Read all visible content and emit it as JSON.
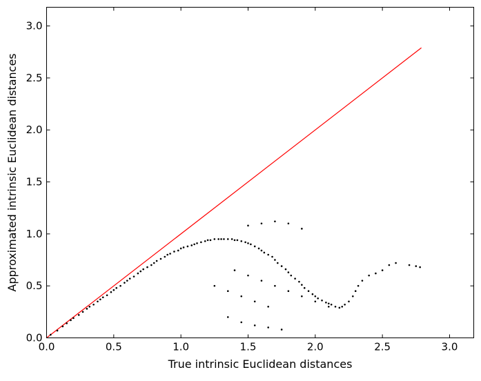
{
  "chart_data": {
    "type": "scatter",
    "title": "",
    "xlabel": "True intrinsic Euclidean distances",
    "ylabel": "Approximated intrinsic Euclidean distances",
    "xlim": [
      0.0,
      3.18
    ],
    "ylim": [
      0.0,
      3.18
    ],
    "xticks": [
      "0.0",
      "0.5",
      "1.0",
      "1.5",
      "2.0",
      "2.5",
      "3.0"
    ],
    "yticks": [
      "0.0",
      "0.5",
      "1.0",
      "1.5",
      "2.0",
      "2.5",
      "3.0"
    ],
    "grid": false,
    "legend": "none",
    "marker_color": "#000000",
    "line_color": "#ff0000",
    "series": [
      {
        "kind": "line",
        "x": [
          0.0,
          2.79
        ],
        "y": [
          0.0,
          2.79
        ]
      },
      {
        "kind": "scatter",
        "x": [
          0.03,
          0.08,
          0.12,
          0.15,
          0.18,
          0.2,
          0.24,
          0.27,
          0.3,
          0.32,
          0.35,
          0.38,
          0.4,
          0.42,
          0.45,
          0.48,
          0.5,
          0.52,
          0.55,
          0.58,
          0.6,
          0.62,
          0.65,
          0.68,
          0.7,
          0.72,
          0.75,
          0.78,
          0.8,
          0.82,
          0.85,
          0.88,
          0.9,
          0.92,
          0.95,
          0.98,
          1.0,
          1.02,
          1.05,
          1.08,
          1.1,
          1.12,
          1.15,
          1.18,
          1.2,
          1.22,
          1.25,
          1.28,
          1.3,
          1.32,
          1.35,
          1.38,
          1.4,
          1.42,
          1.45,
          1.48,
          1.5,
          1.52,
          1.55,
          1.58,
          1.6,
          1.62,
          1.65,
          1.68,
          1.7,
          1.72,
          1.75,
          1.78,
          1.8,
          1.82,
          1.85,
          1.88,
          1.9,
          1.92,
          1.95,
          1.98,
          2.0,
          2.02,
          2.05,
          2.08,
          2.1,
          2.12,
          2.15,
          2.18,
          2.2,
          2.22,
          2.25,
          2.28,
          2.3,
          2.32,
          2.35,
          2.4,
          2.45,
          2.5,
          2.55,
          2.6,
          2.7,
          2.75,
          2.78,
          1.25,
          1.35,
          1.45,
          1.55,
          1.65,
          1.35,
          1.45,
          1.55,
          1.65,
          1.75,
          1.4,
          1.5,
          1.6,
          1.7,
          1.8,
          1.9,
          2.0,
          2.1,
          1.5,
          1.6,
          1.7,
          1.8,
          1.9
        ],
        "y": [
          0.03,
          0.07,
          0.11,
          0.14,
          0.17,
          0.19,
          0.22,
          0.25,
          0.28,
          0.3,
          0.32,
          0.35,
          0.37,
          0.39,
          0.41,
          0.44,
          0.46,
          0.48,
          0.5,
          0.53,
          0.55,
          0.57,
          0.59,
          0.62,
          0.64,
          0.66,
          0.68,
          0.7,
          0.72,
          0.74,
          0.76,
          0.78,
          0.8,
          0.81,
          0.83,
          0.84,
          0.86,
          0.87,
          0.88,
          0.89,
          0.9,
          0.91,
          0.92,
          0.93,
          0.94,
          0.94,
          0.95,
          0.95,
          0.95,
          0.95,
          0.95,
          0.95,
          0.94,
          0.94,
          0.93,
          0.92,
          0.91,
          0.9,
          0.88,
          0.86,
          0.84,
          0.82,
          0.8,
          0.78,
          0.75,
          0.72,
          0.69,
          0.66,
          0.63,
          0.6,
          0.57,
          0.54,
          0.51,
          0.48,
          0.45,
          0.42,
          0.4,
          0.38,
          0.36,
          0.34,
          0.33,
          0.32,
          0.3,
          0.29,
          0.3,
          0.32,
          0.35,
          0.4,
          0.45,
          0.5,
          0.55,
          0.6,
          0.62,
          0.65,
          0.7,
          0.72,
          0.7,
          0.69,
          0.68,
          0.5,
          0.45,
          0.4,
          0.35,
          0.3,
          0.2,
          0.15,
          0.12,
          0.1,
          0.08,
          0.65,
          0.6,
          0.55,
          0.5,
          0.45,
          0.4,
          0.35,
          0.3,
          1.08,
          1.1,
          1.12,
          1.1,
          1.05
        ]
      }
    ]
  }
}
